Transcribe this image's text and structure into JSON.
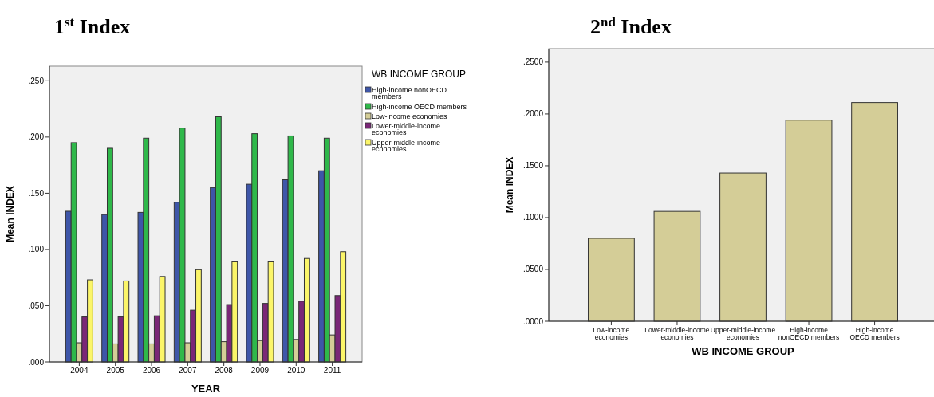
{
  "chart_data": [
    {
      "type": "bar",
      "title": "1$^{st}$ Index",
      "xlabel": "YEAR",
      "ylabel": "Mean INDEX",
      "legend_title": "WB INCOME GROUP",
      "legend": "right",
      "categories": [
        "2004",
        "2005",
        "2006",
        "2007",
        "2008",
        "2009",
        "2010",
        "2011"
      ],
      "ylim": [
        0,
        0.263
      ],
      "yticks": [
        {
          "value": 0,
          "label": ".000"
        },
        {
          "value": 0.05,
          "label": ".050"
        },
        {
          "value": 0.1,
          "label": ".100"
        },
        {
          "value": 0.15,
          "label": ".150"
        },
        {
          "value": 0.2,
          "label": ".200"
        },
        {
          "value": 0.25,
          "label": ".250"
        }
      ],
      "series": [
        {
          "name": "High-income nonOECD members",
          "color": "#3e56a8",
          "values": [
            0.134,
            0.131,
            0.133,
            0.142,
            0.155,
            0.158,
            0.162,
            0.17
          ]
        },
        {
          "name": "High-income OECD members",
          "color": "#2fb84a",
          "values": [
            0.195,
            0.19,
            0.199,
            0.208,
            0.218,
            0.203,
            0.201,
            0.199
          ]
        },
        {
          "name": "Low-income economies",
          "color": "#d4cd97",
          "values": [
            0.017,
            0.016,
            0.016,
            0.017,
            0.018,
            0.019,
            0.02,
            0.024
          ]
        },
        {
          "name": "Lower-middle-income economies",
          "color": "#7a2777",
          "values": [
            0.04,
            0.04,
            0.041,
            0.046,
            0.051,
            0.052,
            0.054,
            0.059
          ]
        },
        {
          "name": "Upper-middle-income economies",
          "color": "#fbf569",
          "values": [
            0.073,
            0.072,
            0.076,
            0.082,
            0.089,
            0.089,
            0.092,
            0.098
          ]
        }
      ]
    },
    {
      "type": "bar",
      "title": "2$^{nd}$ Index",
      "xlabel": "WB INCOME GROUP",
      "ylabel": "Mean INDEX",
      "categories": [
        "Low-income economies",
        "Lower-middle-income economies",
        "Upper-middle-income economies",
        "High-income nonOECD members",
        "High-income OECD members"
      ],
      "ylim": [
        0,
        0.263
      ],
      "yticks": [
        {
          "value": 0,
          "label": ".0000"
        },
        {
          "value": 0.05,
          "label": ".0500"
        },
        {
          "value": 0.1,
          "label": ".1000"
        },
        {
          "value": 0.15,
          "label": ".1500"
        },
        {
          "value": 0.2,
          "label": ".2000"
        },
        {
          "value": 0.25,
          "label": ".2500"
        }
      ],
      "color": "#d4cd97",
      "values": [
        0.08,
        0.106,
        0.143,
        0.194,
        0.211
      ]
    }
  ]
}
